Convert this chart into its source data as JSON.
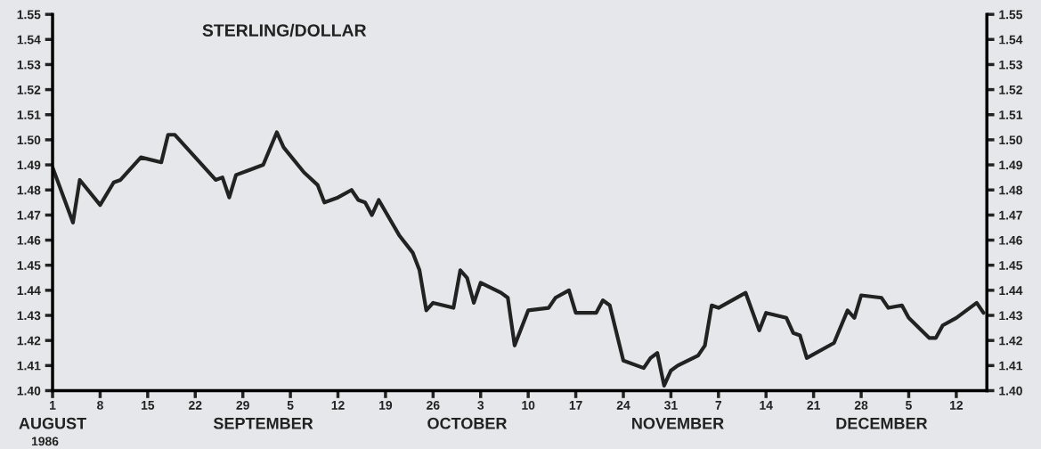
{
  "chart_data": {
    "type": "line",
    "title": "STERLING/DOLLAR",
    "annotations": [
      "1986"
    ],
    "x": [
      "1986-08-01",
      "1986-08-04",
      "1986-08-05",
      "1986-08-08",
      "1986-08-10",
      "1986-08-11",
      "1986-08-14",
      "1986-08-17",
      "1986-08-18",
      "1986-08-19",
      "1986-08-22",
      "1986-08-25",
      "1986-08-26",
      "1986-08-27",
      "1986-08-28",
      "1986-08-30",
      "1986-09-01",
      "1986-09-03",
      "1986-09-04",
      "1986-09-07",
      "1986-09-09",
      "1986-09-10",
      "1986-09-12",
      "1986-09-14",
      "1986-09-15",
      "1986-09-16",
      "1986-09-17",
      "1986-09-18",
      "1986-09-21",
      "1986-09-23",
      "1986-09-24",
      "1986-09-25",
      "1986-09-26",
      "1986-09-29",
      "1986-09-30",
      "1986-10-01",
      "1986-10-02",
      "1986-10-03",
      "1986-10-06",
      "1986-10-07",
      "1986-10-08",
      "1986-10-10",
      "1986-10-13",
      "1986-10-14",
      "1986-10-16",
      "1986-10-17",
      "1986-10-20",
      "1986-10-21",
      "1986-10-22",
      "1986-10-24",
      "1986-10-27",
      "1986-10-28",
      "1986-10-29",
      "1986-10-30",
      "1986-10-31",
      "1986-11-01",
      "1986-11-04",
      "1986-11-05",
      "1986-11-06",
      "1986-11-07",
      "1986-11-11",
      "1986-11-13",
      "1986-11-14",
      "1986-11-17",
      "1986-11-18",
      "1986-11-19",
      "1986-11-20",
      "1986-11-24",
      "1986-11-26",
      "1986-11-27",
      "1986-11-28",
      "1986-12-01",
      "1986-12-02",
      "1986-12-04",
      "1986-12-05",
      "1986-12-08",
      "1986-12-09",
      "1986-12-10",
      "1986-12-12",
      "1986-12-15",
      "1986-12-16"
    ],
    "series": [
      {
        "color": "#222222",
        "values": [
          1.489,
          1.467,
          1.484,
          1.474,
          1.483,
          1.484,
          1.493,
          1.491,
          1.502,
          1.502,
          1.493,
          1.484,
          1.485,
          1.477,
          1.486,
          1.488,
          1.49,
          1.503,
          1.497,
          1.487,
          1.482,
          1.475,
          1.477,
          1.48,
          1.476,
          1.475,
          1.47,
          1.476,
          1.462,
          1.455,
          1.448,
          1.432,
          1.435,
          1.433,
          1.448,
          1.445,
          1.435,
          1.443,
          1.439,
          1.437,
          1.418,
          1.432,
          1.433,
          1.437,
          1.44,
          1.431,
          1.431,
          1.436,
          1.434,
          1.412,
          1.409,
          1.413,
          1.415,
          1.402,
          1.408,
          1.41,
          1.414,
          1.418,
          1.434,
          1.433,
          1.439,
          1.424,
          1.431,
          1.429,
          1.423,
          1.422,
          1.413,
          1.419,
          1.432,
          1.429,
          1.438,
          1.437,
          1.433,
          1.434,
          1.429,
          1.421,
          1.421,
          1.426,
          1.429,
          1.435,
          1.431
        ]
      }
    ],
    "xlim": [
      "1986-08-01",
      "1986-12-16T12:00"
    ],
    "xticks": [
      {
        "value": "1986-08-01",
        "label": "1"
      },
      {
        "value": "1986-08-08",
        "label": "8"
      },
      {
        "value": "1986-08-15",
        "label": "15"
      },
      {
        "value": "1986-08-22",
        "label": "22"
      },
      {
        "value": "1986-08-29",
        "label": "29"
      },
      {
        "value": "1986-09-05",
        "label": "5"
      },
      {
        "value": "1986-09-12",
        "label": "12"
      },
      {
        "value": "1986-09-19",
        "label": "19"
      },
      {
        "value": "1986-09-26",
        "label": "26"
      },
      {
        "value": "1986-10-03",
        "label": "3"
      },
      {
        "value": "1986-10-10",
        "label": "10"
      },
      {
        "value": "1986-10-17",
        "label": "17"
      },
      {
        "value": "1986-10-24",
        "label": "24"
      },
      {
        "value": "1986-10-31",
        "label": "31"
      },
      {
        "value": "1986-11-07",
        "label": "7"
      },
      {
        "value": "1986-11-14",
        "label": "14"
      },
      {
        "value": "1986-11-21",
        "label": "21"
      },
      {
        "value": "1986-11-28",
        "label": "28"
      },
      {
        "value": "1986-12-05",
        "label": "5"
      },
      {
        "value": "1986-12-12",
        "label": "12"
      }
    ],
    "x2lim": [
      "1986-08-01",
      "1986-12-16T12:00"
    ],
    "x2ticks": [
      {
        "value": "1986-08-01",
        "label": "AUGUST"
      },
      {
        "value": "1986-09-01",
        "label": "SEPTEMBER"
      },
      {
        "value": "1986-10-01",
        "label": "OCTOBER"
      },
      {
        "value": "1986-11-01",
        "label": "NOVEMBER"
      },
      {
        "value": "1986-12-01",
        "label": "DECEMBER"
      }
    ],
    "ylim": [
      1.4,
      1.55
    ],
    "yticks": [
      {
        "value": 1.4,
        "label": "1.40"
      },
      {
        "value": 1.41,
        "label": "1.41"
      },
      {
        "value": 1.42,
        "label": "1.42"
      },
      {
        "value": 1.43,
        "label": "1.43"
      },
      {
        "value": 1.44,
        "label": "1.44"
      },
      {
        "value": 1.45,
        "label": "1.45"
      },
      {
        "value": 1.46,
        "label": "1.46"
      },
      {
        "value": 1.47,
        "label": "1.47"
      },
      {
        "value": 1.48,
        "label": "1.48"
      },
      {
        "value": 1.49,
        "label": "1.49"
      },
      {
        "value": 1.5,
        "label": "1.50"
      },
      {
        "value": 1.51,
        "label": "1.51"
      },
      {
        "value": 1.52,
        "label": "1.52"
      },
      {
        "value": 1.53,
        "label": "1.53"
      },
      {
        "value": 1.54,
        "label": "1.54"
      },
      {
        "value": 1.55,
        "label": "1.55"
      }
    ],
    "y2lim": [
      1.4,
      1.55
    ],
    "y2ticks": [
      {
        "value": 1.4,
        "label": "1.40"
      },
      {
        "value": 1.41,
        "label": "1.41"
      },
      {
        "value": 1.42,
        "label": "1.42"
      },
      {
        "value": 1.43,
        "label": "1.43"
      },
      {
        "value": 1.44,
        "label": "1.44"
      },
      {
        "value": 1.45,
        "label": "1.45"
      },
      {
        "value": 1.46,
        "label": "1.46"
      },
      {
        "value": 1.47,
        "label": "1.47"
      },
      {
        "value": 1.48,
        "label": "1.48"
      },
      {
        "value": 1.49,
        "label": "1.49"
      },
      {
        "value": 1.5,
        "label": "1.50"
      },
      {
        "value": 1.51,
        "label": "1.51"
      },
      {
        "value": 1.52,
        "label": "1.52"
      },
      {
        "value": 1.53,
        "label": "1.53"
      },
      {
        "value": 1.54,
        "label": "1.54"
      },
      {
        "value": 1.55,
        "label": "1.55"
      }
    ],
    "grid": false,
    "legend": false
  }
}
